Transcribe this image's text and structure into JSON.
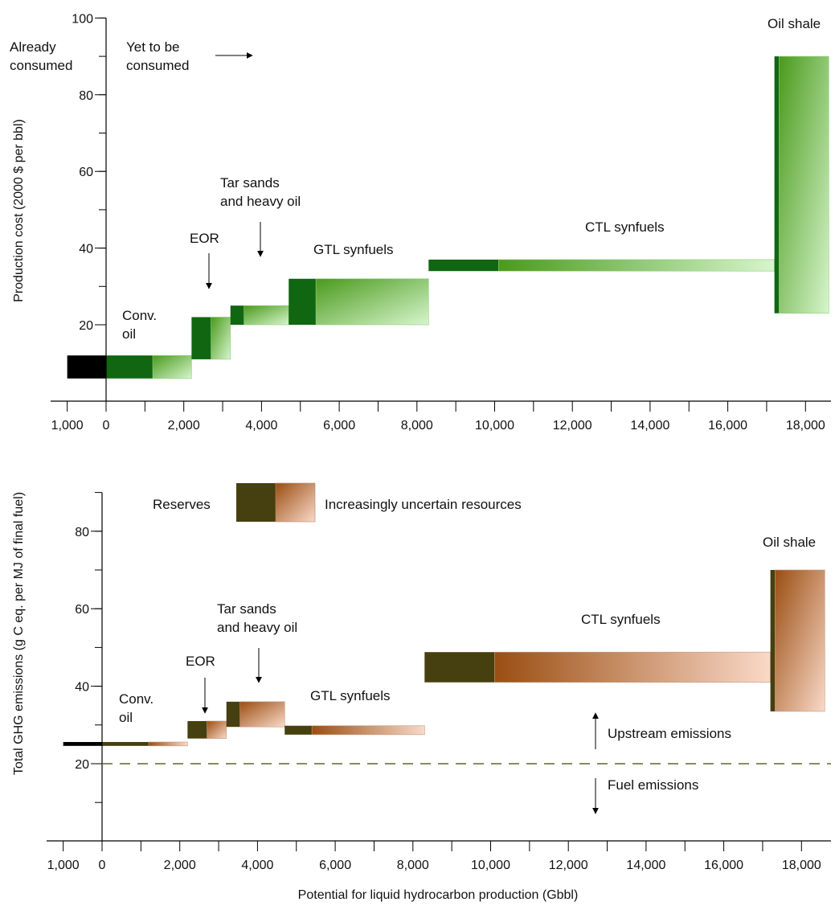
{
  "colors": {
    "top_dark": "#116611",
    "top_mid": "#4a9a1c",
    "top_light": "#d6f5cc",
    "top_consumed": "#000000",
    "bottom_dark": "#463f10",
    "bottom_mid": "#9a4e12",
    "bottom_light": "#fad9c8",
    "bottom_consumed": "#000000",
    "divider": "#5a6a2a"
  },
  "chart_data": [
    {
      "type": "bar",
      "ylabel": "Production cost (2000 $ per bbl)",
      "xlabel": "",
      "ylim": [
        0,
        100
      ],
      "yticks": [
        20,
        40,
        60,
        80,
        100
      ],
      "xticks": [
        {
          "v": -1000,
          "label": "1,000"
        },
        {
          "v": 0,
          "label": "0"
        },
        {
          "v": 2000,
          "label": "2,000"
        },
        {
          "v": 4000,
          "label": "4,000"
        },
        {
          "v": 6000,
          "label": "6,000"
        },
        {
          "v": 8000,
          "label": "8,000"
        },
        {
          "v": 10000,
          "label": "10,000"
        },
        {
          "v": 12000,
          "label": "12,000"
        },
        {
          "v": 14000,
          "label": "14,000"
        },
        {
          "v": 16000,
          "label": "16,000"
        },
        {
          "v": 18000,
          "label": "18,000"
        }
      ],
      "consumed": {
        "x0": -1000,
        "x1": 0,
        "y0": 6,
        "y1": 12
      },
      "resources": [
        {
          "x0": 0,
          "x_res": 1200,
          "x1": 2200,
          "y0": 6,
          "y1": 12
        },
        {
          "x0": 2200,
          "x_res": 2700,
          "x1": 3200,
          "y0": 11,
          "y1": 22
        },
        {
          "x0": 3200,
          "x_res": 3550,
          "x1": 4700,
          "y0": 20,
          "y1": 25
        },
        {
          "x0": 4700,
          "x_res": 5400,
          "x1": 8300,
          "y0": 20,
          "y1": 32
        },
        {
          "x0": 8300,
          "x_res": 10100,
          "x1": 17200,
          "y0": 34,
          "y1": 37
        },
        {
          "x0": 17200,
          "x_res": 17320,
          "x1": 18600,
          "y0": 23,
          "y1": 90
        }
      ],
      "labels": {
        "already_consumed": [
          "Already",
          "consumed"
        ],
        "yet_to_be": [
          "Yet to be",
          "consumed"
        ],
        "conv_oil": [
          "Conv.",
          "oil"
        ],
        "eor": "EOR",
        "tar_sands": [
          "Tar sands",
          "and heavy oil"
        ],
        "gtl": "GTL synfuels",
        "ctl": "CTL synfuels",
        "oil_shale": "Oil shale"
      }
    },
    {
      "type": "bar",
      "ylabel": "Total GHG emissions (g C eq. per MJ of final fuel)",
      "xlabel": "Potential for liquid hydrocarbon production (Gbbl)",
      "ylim": [
        0,
        90
      ],
      "yticks": [
        20,
        40,
        60,
        80
      ],
      "xticks": [
        {
          "v": -1000,
          "label": "1,000"
        },
        {
          "v": 0,
          "label": "0"
        },
        {
          "v": 2000,
          "label": "2,000"
        },
        {
          "v": 4000,
          "label": "4,000"
        },
        {
          "v": 6000,
          "label": "6,000"
        },
        {
          "v": 8000,
          "label": "8,000"
        },
        {
          "v": 10000,
          "label": "10,000"
        },
        {
          "v": 12000,
          "label": "12,000"
        },
        {
          "v": 14000,
          "label": "14,000"
        },
        {
          "v": 16000,
          "label": "16,000"
        },
        {
          "v": 18000,
          "label": "18,000"
        }
      ],
      "fuel_line": 20,
      "consumed": {
        "x0": -1000,
        "x1": 0,
        "y0": 24.6,
        "y1": 25.6
      },
      "resources": [
        {
          "x0": 0,
          "x_res": 1200,
          "x1": 2200,
          "y0": 24.6,
          "y1": 25.6
        },
        {
          "x0": 2200,
          "x_res": 2700,
          "x1": 3200,
          "y0": 26.5,
          "y1": 31
        },
        {
          "x0": 3200,
          "x_res": 3550,
          "x1": 4700,
          "y0": 29.5,
          "y1": 36
        },
        {
          "x0": 4700,
          "x_res": 5400,
          "x1": 8300,
          "y0": 27.5,
          "y1": 29.8
        },
        {
          "x0": 8300,
          "x_res": 10100,
          "x1": 17200,
          "y0": 41,
          "y1": 48.8
        },
        {
          "x0": 17200,
          "x_res": 17320,
          "x1": 18600,
          "y0": 33.5,
          "y1": 70
        }
      ],
      "legend": {
        "reserves": "Reserves",
        "uncertain": "Increasingly uncertain resources"
      },
      "labels": {
        "conv_oil": [
          "Conv.",
          "oil"
        ],
        "eor": "EOR",
        "tar_sands": [
          "Tar sands",
          "and heavy oil"
        ],
        "gtl": "GTL synfuels",
        "ctl": "CTL synfuels",
        "oil_shale": "Oil shale",
        "upstream": "Upstream emissions",
        "fuel": "Fuel emissions"
      }
    }
  ]
}
